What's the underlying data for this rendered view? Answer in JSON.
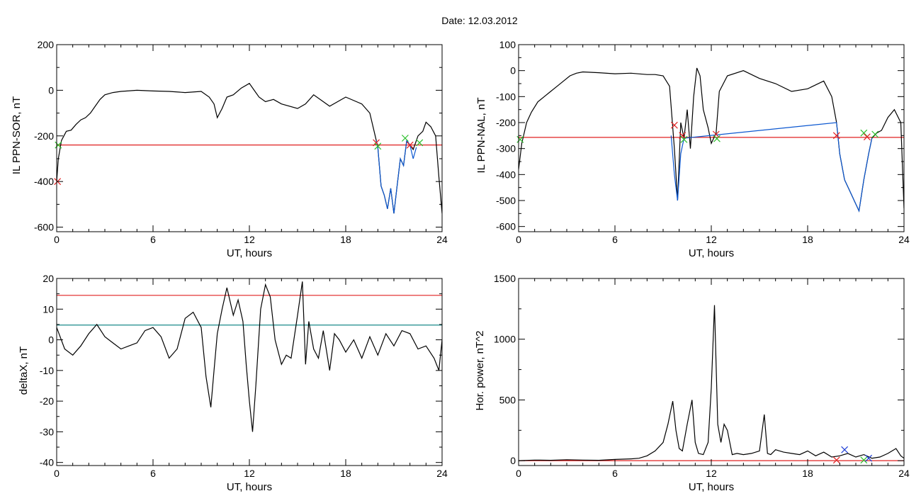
{
  "figure": {
    "title": "Date:  12.03.2012"
  },
  "chart_data": [
    {
      "type": "line",
      "panel": "top-left",
      "xlabel": "UT, hours",
      "ylabel": "IL PPN-SOR, nT",
      "xlim": [
        0,
        24
      ],
      "ylim": [
        -620,
        200
      ],
      "xticks": [
        0,
        6,
        12,
        18,
        24
      ],
      "yticks": [
        -600,
        -400,
        -200,
        0,
        200
      ],
      "series": [
        {
          "color": "#000000",
          "x": [
            0,
            0.1,
            0.3,
            0.6,
            0.9,
            1.2,
            1.5,
            1.8,
            2.1,
            2.4,
            2.7,
            3.0,
            3.5,
            4.0,
            5.0,
            6.0,
            7.0,
            8.0,
            9.0,
            9.5,
            9.8,
            10.0,
            10.3,
            10.6,
            11.0,
            11.5,
            12.0,
            12.3,
            12.6,
            13.0,
            13.5,
            14.0,
            15.0,
            15.5,
            16.0,
            17.0,
            18.0,
            19.0,
            19.5,
            19.9,
            20.0,
            20.2,
            20.4,
            20.6,
            20.8,
            21.0,
            21.2,
            21.4,
            21.6,
            21.8,
            22.0,
            22.2,
            22.5,
            22.8,
            23.0,
            23.3,
            23.6,
            23.8,
            24.0
          ],
          "y": [
            -400,
            -300,
            -220,
            -180,
            -175,
            -150,
            -130,
            -120,
            -100,
            -70,
            -40,
            -20,
            -10,
            -5,
            0,
            -3,
            -5,
            -10,
            -5,
            -30,
            -60,
            -120,
            -80,
            -30,
            -20,
            10,
            30,
            0,
            -30,
            -50,
            -40,
            -60,
            -80,
            -60,
            -20,
            -70,
            -30,
            -60,
            -100,
            -220,
            -250,
            -420,
            -460,
            -520,
            -430,
            -540,
            -420,
            -300,
            -330,
            -220,
            -240,
            -260,
            -200,
            -180,
            -140,
            -160,
            -200,
            -380,
            -540
          ]
        },
        {
          "color": "#0b57d0",
          "x": [
            19.9,
            20.0,
            20.2,
            20.4,
            20.6,
            20.8,
            21.0,
            21.2,
            21.4,
            21.6,
            21.8,
            22.0,
            22.2,
            22.4
          ],
          "y": [
            -220,
            -250,
            -420,
            -460,
            -520,
            -430,
            -540,
            -420,
            -300,
            -330,
            -220,
            -240,
            -300,
            -250
          ]
        }
      ],
      "hlines": [
        {
          "y": -240,
          "color": "#e02020"
        }
      ],
      "markers": [
        {
          "x": 0.1,
          "y": -240,
          "color": "#2bbf2b"
        },
        {
          "x": 0.05,
          "y": -400,
          "color": "#e02020"
        },
        {
          "x": 19.9,
          "y": -230,
          "color": "#e02020"
        },
        {
          "x": 20.0,
          "y": -245,
          "color": "#2bbf2b"
        },
        {
          "x": 21.7,
          "y": -210,
          "color": "#2bbf2b"
        },
        {
          "x": 22.0,
          "y": -240,
          "color": "#e02020"
        },
        {
          "x": 22.6,
          "y": -230,
          "color": "#2bbf2b"
        }
      ]
    },
    {
      "type": "line",
      "panel": "top-right",
      "xlabel": "UT, hours",
      "ylabel": "IL PPN-NAL, nT",
      "xlim": [
        0,
        24
      ],
      "ylim": [
        -620,
        100
      ],
      "xticks": [
        0,
        6,
        12,
        18,
        24
      ],
      "yticks": [
        -600,
        -500,
        -400,
        -300,
        -200,
        -100,
        0,
        100
      ],
      "series": [
        {
          "color": "#000000",
          "x": [
            0,
            0.2,
            0.5,
            0.8,
            1.2,
            1.6,
            2.0,
            2.4,
            2.8,
            3.2,
            3.6,
            4.0,
            5.0,
            6.0,
            7.0,
            8.0,
            8.5,
            9.0,
            9.4,
            9.7,
            9.9,
            10.1,
            10.3,
            10.5,
            10.7,
            10.9,
            11.1,
            11.3,
            11.5,
            11.8,
            12.0,
            12.3,
            12.5,
            13.0,
            14.0,
            15.0,
            16.0,
            17.0,
            18.0,
            19.0,
            19.5,
            19.8,
            20.0,
            20.3,
            20.6,
            20.9,
            21.2,
            21.5,
            21.8,
            22.0,
            22.3,
            22.6,
            23.0,
            23.4,
            23.8,
            24.0
          ],
          "y": [
            -380,
            -280,
            -200,
            -160,
            -120,
            -100,
            -80,
            -60,
            -40,
            -20,
            -10,
            -5,
            -8,
            -12,
            -10,
            -15,
            -15,
            -20,
            -60,
            -300,
            -500,
            -200,
            -260,
            -150,
            -300,
            -100,
            10,
            -20,
            -150,
            -220,
            -280,
            -240,
            -80,
            -20,
            0,
            -30,
            -50,
            -80,
            -70,
            -40,
            -100,
            -200,
            -320,
            -420,
            -460,
            -500,
            -540,
            -420,
            -320,
            -260,
            -240,
            -230,
            -180,
            -150,
            -200,
            -530
          ]
        },
        {
          "color": "#0b57d0",
          "x": [
            9.5,
            9.7,
            9.9,
            10.1,
            10.3,
            19.8,
            20.0,
            20.3,
            20.6,
            20.9,
            21.2,
            21.5,
            21.8,
            22.0
          ],
          "y": [
            -250,
            -400,
            -500,
            -320,
            -260,
            -200,
            -320,
            -420,
            -460,
            -500,
            -540,
            -420,
            -320,
            -260
          ]
        }
      ],
      "hlines": [
        {
          "y": -257,
          "color": "#e02020"
        }
      ],
      "markers": [
        {
          "x": 0.1,
          "y": -265,
          "color": "#2bbf2b"
        },
        {
          "x": 9.7,
          "y": -210,
          "color": "#e02020"
        },
        {
          "x": 10.2,
          "y": -250,
          "color": "#e02020"
        },
        {
          "x": 10.3,
          "y": -265,
          "color": "#2bbf2b"
        },
        {
          "x": 12.3,
          "y": -245,
          "color": "#e02020"
        },
        {
          "x": 12.35,
          "y": -262,
          "color": "#2bbf2b"
        },
        {
          "x": 19.8,
          "y": -250,
          "color": "#e02020"
        },
        {
          "x": 21.5,
          "y": -240,
          "color": "#2bbf2b"
        },
        {
          "x": 21.7,
          "y": -255,
          "color": "#e02020"
        },
        {
          "x": 22.2,
          "y": -245,
          "color": "#2bbf2b"
        }
      ]
    },
    {
      "type": "line",
      "panel": "bottom-left",
      "xlabel": "UT, hours",
      "ylabel": "deltaX, nT",
      "xlim": [
        0,
        24
      ],
      "ylim": [
        -41,
        20
      ],
      "xticks": [
        0,
        6,
        12,
        18,
        24
      ],
      "yticks": [
        -40,
        -30,
        -20,
        -10,
        0,
        10,
        20
      ],
      "series": [
        {
          "color": "#000000",
          "x": [
            0,
            0.5,
            1.0,
            1.5,
            2.0,
            2.5,
            3.0,
            3.5,
            4.0,
            4.5,
            5.0,
            5.5,
            6.0,
            6.5,
            7.0,
            7.5,
            8.0,
            8.5,
            9.0,
            9.3,
            9.6,
            9.8,
            10.0,
            10.3,
            10.6,
            11.0,
            11.3,
            11.6,
            11.8,
            12.0,
            12.2,
            12.4,
            12.7,
            13.0,
            13.3,
            13.6,
            14.0,
            14.3,
            14.6,
            15.0,
            15.3,
            15.5,
            15.7,
            16.0,
            16.3,
            16.6,
            17.0,
            17.3,
            17.6,
            18.0,
            18.5,
            19.0,
            19.5,
            20.0,
            20.5,
            21.0,
            21.5,
            22.0,
            22.5,
            23.0,
            23.5,
            23.8,
            24.0
          ],
          "y": [
            4,
            -3,
            -5,
            -2,
            2,
            5,
            1,
            -1,
            -3,
            -2,
            -1,
            3,
            4,
            1,
            -6,
            -3,
            7,
            9,
            4,
            -12,
            -22,
            -10,
            2,
            10,
            17,
            8,
            13,
            6,
            -8,
            -20,
            -30,
            -15,
            10,
            18,
            14,
            0,
            -8,
            -5,
            -6,
            8,
            19,
            -8,
            6,
            -3,
            -6,
            3,
            -10,
            2,
            0,
            -4,
            0,
            -6,
            1,
            -5,
            2,
            -2,
            3,
            2,
            -3,
            -2,
            -6,
            -10,
            0
          ]
        }
      ],
      "hlines": [
        {
          "y": 14.5,
          "color": "#e02020"
        },
        {
          "y": 4.8,
          "color": "#1a8a8a"
        }
      ],
      "markers": []
    },
    {
      "type": "line",
      "panel": "bottom-right",
      "xlabel": "UT, hours",
      "ylabel": "Hor. power, nT^2",
      "xlim": [
        0,
        24
      ],
      "ylim": [
        -40,
        1500
      ],
      "xticks": [
        0,
        6,
        12,
        18,
        24
      ],
      "yticks": [
        0,
        500,
        1000,
        1500
      ],
      "series": [
        {
          "color": "#000000",
          "x": [
            0,
            1.0,
            2.0,
            3.0,
            4.0,
            5.0,
            6.0,
            7.0,
            7.5,
            8.0,
            8.5,
            9.0,
            9.3,
            9.6,
            9.8,
            10.0,
            10.2,
            10.5,
            10.8,
            11.0,
            11.2,
            11.5,
            11.8,
            12.0,
            12.2,
            12.4,
            12.6,
            12.8,
            13.0,
            13.3,
            13.6,
            14.0,
            14.5,
            15.0,
            15.3,
            15.5,
            15.7,
            16.0,
            16.5,
            17.0,
            17.5,
            18.0,
            18.5,
            19.0,
            19.5,
            20.0,
            20.5,
            21.0,
            21.5,
            22.0,
            22.5,
            23.0,
            23.5,
            23.8,
            24.0
          ],
          "y": [
            0,
            5,
            3,
            8,
            5,
            3,
            10,
            15,
            20,
            40,
            80,
            150,
            300,
            490,
            250,
            100,
            80,
            300,
            500,
            150,
            60,
            50,
            150,
            600,
            1280,
            300,
            150,
            300,
            250,
            50,
            60,
            50,
            60,
            80,
            380,
            60,
            50,
            90,
            70,
            60,
            50,
            80,
            40,
            70,
            30,
            40,
            60,
            30,
            50,
            20,
            30,
            60,
            100,
            40,
            20
          ]
        }
      ],
      "hlines": [
        {
          "y": 0,
          "color": "#e02020"
        }
      ],
      "markers": [
        {
          "x": 19.8,
          "y": 5,
          "color": "#e02020"
        },
        {
          "x": 20.3,
          "y": 90,
          "color": "#1f3fd6"
        },
        {
          "x": 21.5,
          "y": 5,
          "color": "#2bbf2b"
        },
        {
          "x": 21.8,
          "y": 20,
          "color": "#1f3fd6"
        }
      ]
    }
  ]
}
